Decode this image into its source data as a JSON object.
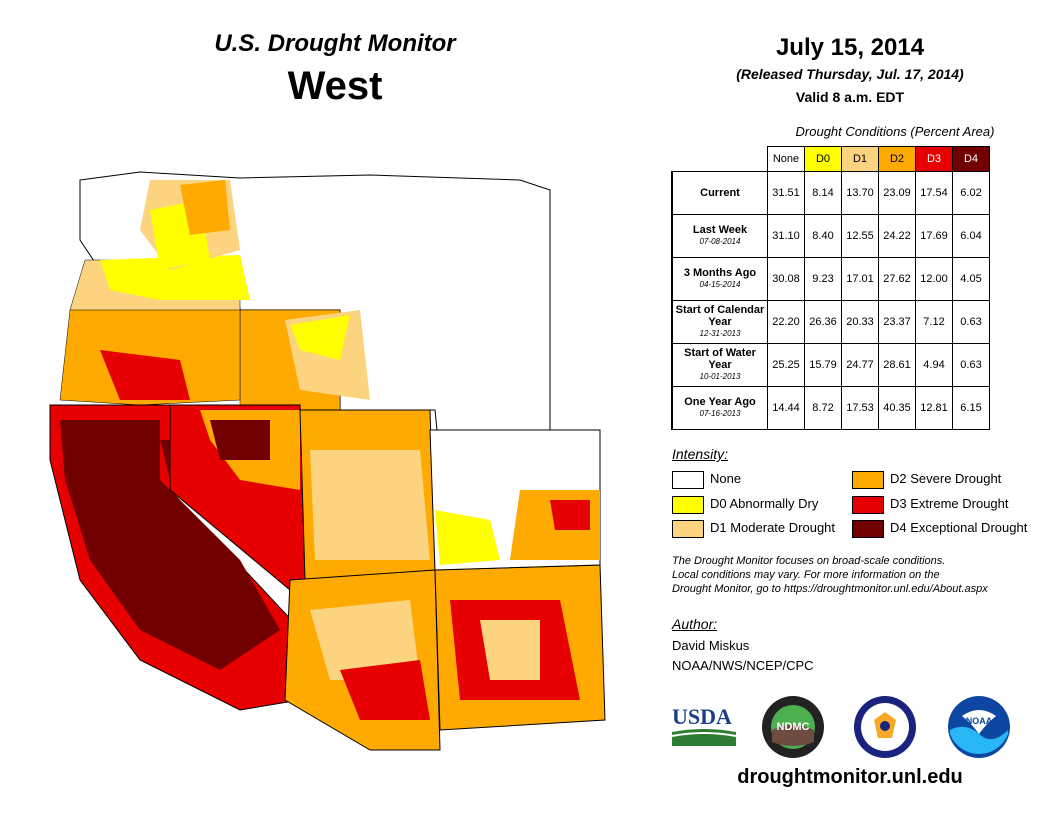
{
  "header": {
    "title": "U.S. Drought Monitor",
    "region": "West",
    "date": "July 15, 2014",
    "released": "(Released Thursday, Jul. 17, 2014)",
    "valid": "Valid 8 a.m. EDT"
  },
  "table": {
    "caption": "Drought Conditions (Percent Area)",
    "columns": [
      "None",
      "D0",
      "D1",
      "D2",
      "D3",
      "D4"
    ],
    "column_colors": [
      "#ffffff",
      "#ffff00",
      "#fcd37f",
      "#ffaa00",
      "#e60000",
      "#730000"
    ],
    "rows": [
      {
        "label": "Current",
        "sub": "",
        "values": [
          "31.51",
          "8.14",
          "13.70",
          "23.09",
          "17.54",
          "6.02"
        ]
      },
      {
        "label": "Last Week",
        "sub": "07-08-2014",
        "values": [
          "31.10",
          "8.40",
          "12.55",
          "24.22",
          "17.69",
          "6.04"
        ]
      },
      {
        "label": "3 Months Ago",
        "sub": "04-15-2014",
        "values": [
          "30.08",
          "9.23",
          "17.01",
          "27.62",
          "12.00",
          "4.05"
        ]
      },
      {
        "label": "Start of Calendar Year",
        "sub": "12-31-2013",
        "values": [
          "22.20",
          "26.36",
          "20.33",
          "23.37",
          "7.12",
          "0.63"
        ]
      },
      {
        "label": "Start of Water Year",
        "sub": "10-01-2013",
        "values": [
          "25.25",
          "15.79",
          "24.77",
          "28.61",
          "4.94",
          "0.63"
        ]
      },
      {
        "label": "One Year Ago",
        "sub": "07-16-2013",
        "values": [
          "14.44",
          "8.72",
          "17.53",
          "40.35",
          "12.81",
          "6.15"
        ]
      }
    ]
  },
  "legend": {
    "title": "Intensity:",
    "items": [
      {
        "label": "None",
        "color": "#ffffff"
      },
      {
        "label": "D0 Abnormally Dry",
        "color": "#ffff00"
      },
      {
        "label": "D1 Moderate Drought",
        "color": "#fcd37f"
      },
      {
        "label": "D2 Severe Drought",
        "color": "#ffaa00"
      },
      {
        "label": "D3 Extreme Drought",
        "color": "#e60000"
      },
      {
        "label": "D4 Exceptional Drought",
        "color": "#730000"
      }
    ]
  },
  "disclaimer": {
    "line1": "The Drought Monitor focuses on broad-scale conditions.",
    "line2": "Local conditions may vary. For more information on the",
    "line3": "Drought Monitor, go to https://droughtmonitor.unl.edu/About.aspx"
  },
  "author": {
    "label": "Author:",
    "name": "David Miskus",
    "org": "NOAA/NWS/NCEP/CPC"
  },
  "logos": {
    "usda": "USDA",
    "ndmc": "NDMC",
    "noaa": "NOAA"
  },
  "website": "droughtmonitor.unl.edu"
}
